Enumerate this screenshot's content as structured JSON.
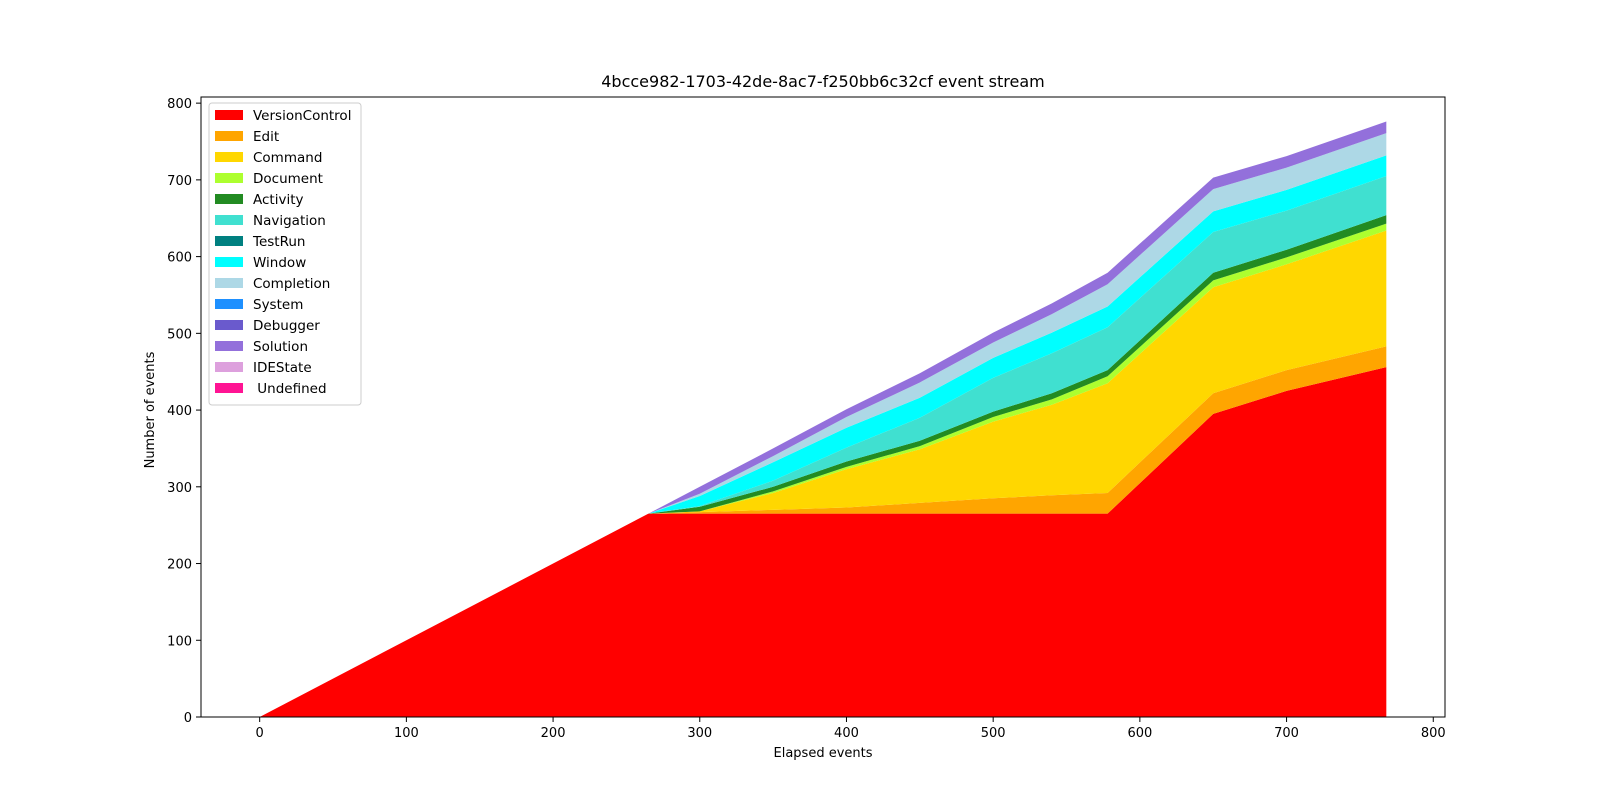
{
  "chart_data": {
    "type": "area",
    "title": "4bcce982-1703-42de-8ac7-f250bb6c32cf event stream",
    "xlabel": "Elapsed events",
    "ylabel": "Number of events",
    "xlim": [
      -40,
      808
    ],
    "ylim": [
      0,
      808
    ],
    "xticks": [
      0,
      100,
      200,
      300,
      400,
      500,
      600,
      700,
      800
    ],
    "yticks": [
      0,
      100,
      200,
      300,
      400,
      500,
      600,
      700,
      800
    ],
    "grid": false,
    "legend_position": "top-left",
    "x": [
      0,
      265,
      300,
      350,
      400,
      450,
      500,
      540,
      578,
      650,
      700,
      768
    ],
    "series": [
      {
        "name": "VersionControl",
        "color": "#ff0000",
        "values": [
          0,
          265,
          265,
          265,
          265,
          265,
          265,
          265,
          265,
          395,
          425,
          456
        ]
      },
      {
        "name": "Edit",
        "color": "#ffa500",
        "values": [
          0,
          0,
          2,
          5,
          8,
          14,
          20,
          24,
          27,
          27,
          27,
          27
        ]
      },
      {
        "name": "Command",
        "color": "#ffd700",
        "values": [
          0,
          0,
          1,
          22,
          50,
          70,
          100,
          118,
          143,
          138,
          138,
          151
        ]
      },
      {
        "name": "Document",
        "color": "#adff2f",
        "values": [
          0,
          0,
          0,
          2,
          3,
          4,
          6,
          7,
          9,
          9,
          9,
          9
        ]
      },
      {
        "name": "Activity",
        "color": "#228b22",
        "values": [
          0,
          0,
          6,
          6,
          7,
          7,
          7,
          8,
          8,
          10,
          10,
          11
        ]
      },
      {
        "name": "Navigation",
        "color": "#40e0d0",
        "values": [
          0,
          0,
          1,
          8,
          18,
          30,
          44,
          52,
          56,
          53,
          51,
          51
        ]
      },
      {
        "name": "TestRun",
        "color": "#008080",
        "values": [
          0,
          0,
          0,
          0,
          0,
          0,
          0,
          0,
          0,
          0,
          0,
          0
        ]
      },
      {
        "name": "Window",
        "color": "#00ffff",
        "values": [
          0,
          0,
          13,
          24,
          26,
          26,
          26,
          27,
          27,
          27,
          27,
          27
        ]
      },
      {
        "name": "Completion",
        "color": "#add8e6",
        "values": [
          0,
          0,
          3,
          8,
          14,
          20,
          20,
          24,
          29,
          29,
          29,
          29
        ]
      },
      {
        "name": "System",
        "color": "#1e90ff",
        "values": [
          0,
          0,
          0,
          0,
          0,
          0,
          0,
          0,
          0,
          0,
          0,
          0
        ]
      },
      {
        "name": "Debugger",
        "color": "#6a5acd",
        "values": [
          0,
          0,
          0,
          0,
          0,
          0,
          0,
          0,
          0,
          0,
          0,
          0
        ]
      },
      {
        "name": "Solution",
        "color": "#9370db",
        "values": [
          0,
          0,
          9,
          10,
          10,
          12,
          13,
          14,
          15,
          15,
          15,
          15
        ]
      },
      {
        "name": "IDEState",
        "color": "#dda0dd",
        "values": [
          0,
          0,
          0,
          0,
          0,
          0,
          0,
          0,
          0,
          0,
          0,
          0
        ]
      },
      {
        "name": " Undefined",
        "color": "#ff1493",
        "values": [
          0,
          0,
          0,
          0,
          0,
          0,
          0,
          0,
          0,
          0,
          0,
          0
        ]
      }
    ]
  }
}
